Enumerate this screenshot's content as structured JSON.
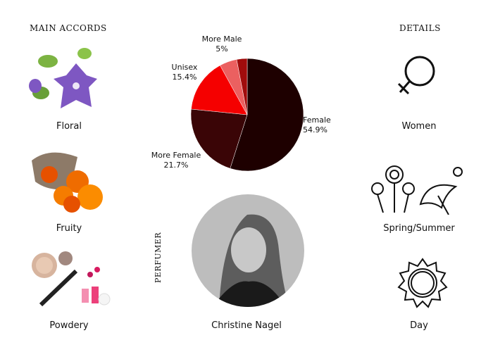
{
  "headings": {
    "accords": "MAIN ACCORDS",
    "details": "DETAILS",
    "perfumer": "PERFUMER"
  },
  "accords": [
    {
      "label": "Floral",
      "icon": "bellflower-image"
    },
    {
      "label": "Fruity",
      "icon": "persimmon-image"
    },
    {
      "label": "Powdery",
      "icon": "cosmetics-image"
    }
  ],
  "details": [
    {
      "label": "Women",
      "icon": "female-symbol-icon"
    },
    {
      "label": "Spring/Summer",
      "icon": "flowers-umbrella-icon"
    },
    {
      "label": "Day",
      "icon": "sun-icon"
    }
  ],
  "perfumer": {
    "name": "Christine Nagel"
  },
  "chart_data": {
    "type": "pie",
    "slices": [
      {
        "label": "Female",
        "value": 54.9,
        "text": "54.9%",
        "color": "#1e0000"
      },
      {
        "label": "More Female",
        "value": 21.7,
        "text": "21.7%",
        "color": "#3a0506"
      },
      {
        "label": "Unisex",
        "value": 15.4,
        "text": "15.4%",
        "color": "#f50000"
      },
      {
        "label": "More Male",
        "value": 5,
        "text": "5%",
        "color": "#eb6060"
      },
      {
        "label": "",
        "value": 3,
        "text": "",
        "color": "#a00c0c"
      }
    ]
  }
}
